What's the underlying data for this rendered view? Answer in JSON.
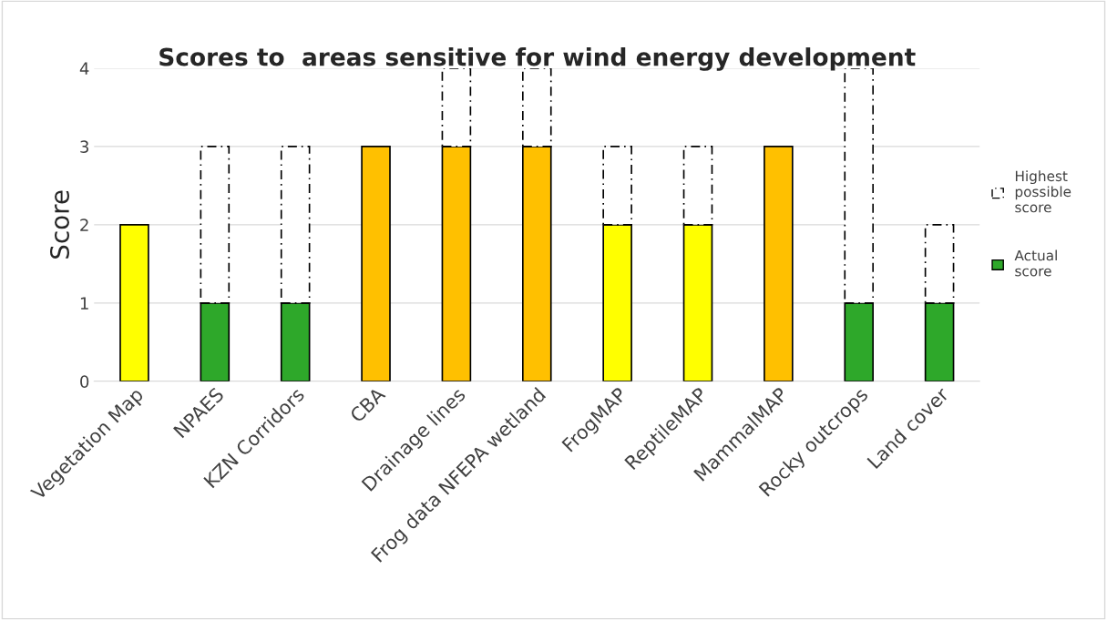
{
  "chart_data": {
    "type": "bar",
    "title": "Scores to  areas sensitive for wind energy development",
    "ylabel": "Score",
    "categories": [
      "Vegetation Map",
      "NPAES",
      "KZN Corridors",
      "CBA",
      "Drainage lines",
      "Frog data NFEPA wetland",
      "FrogMAP",
      "ReptileMAP",
      "MammalMAP",
      "Rocky outcrops",
      "Land cover"
    ],
    "stacked": true,
    "series": [
      {
        "name": "Actual score",
        "color": "#2ea82a",
        "colors": [
          "#ffff00",
          "#2ea82a",
          "#2ea82a",
          "#ffc000",
          "#ffc000",
          "#ffc000",
          "#ffff00",
          "#ffff00",
          "#ffc000",
          "#2ea82a",
          "#2ea82a"
        ],
        "values": [
          2,
          1,
          1,
          3,
          3,
          3,
          2,
          2,
          3,
          1,
          1
        ]
      },
      {
        "name": "Highest possible score",
        "color": "#ffffff",
        "line_style": "dashed",
        "values": [
          null,
          2,
          2,
          null,
          1,
          1,
          1,
          1,
          null,
          3,
          1
        ]
      }
    ],
    "ylim": [
      0,
      4
    ],
    "yticks": [
      0,
      1,
      2,
      3,
      4
    ],
    "grid": "y",
    "legend": "right"
  }
}
